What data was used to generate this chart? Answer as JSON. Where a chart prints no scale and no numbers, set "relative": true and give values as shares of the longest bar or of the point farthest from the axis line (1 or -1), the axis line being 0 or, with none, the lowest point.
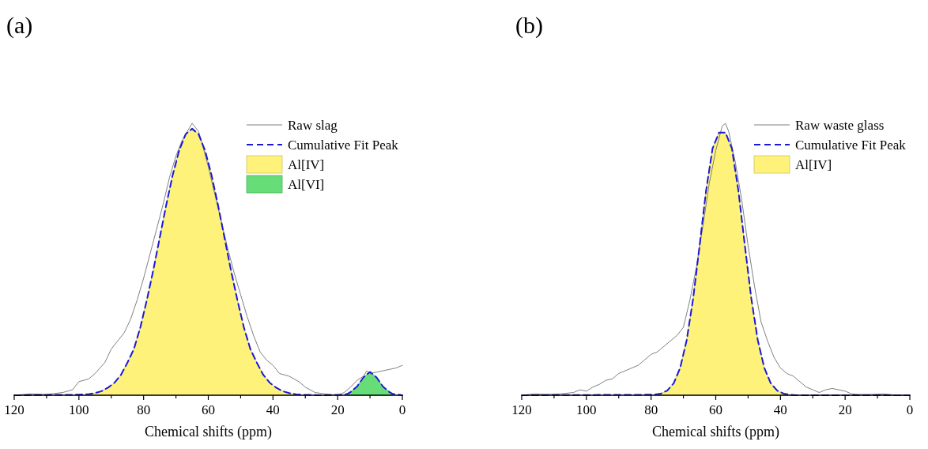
{
  "chart_data": [
    {
      "type": "line",
      "title": "(a)",
      "xlabel": "Chemical shifts (ppm)",
      "relative": true,
      "xlim": [
        120,
        0
      ],
      "xticks": [
        120,
        {
          "value": 110,
          "label": null
        },
        100,
        {
          "value": 90,
          "label": null
        },
        80,
        {
          "value": 70,
          "label": null
        },
        60,
        {
          "value": 50,
          "label": null
        },
        40,
        {
          "value": 30,
          "label": null
        },
        20,
        {
          "value": 10,
          "label": null
        },
        0
      ],
      "grid": false,
      "legend": "top right",
      "series": [
        {
          "name": "Raw slag",
          "color": "#808080",
          "x": [
            120,
            115,
            110,
            105,
            102,
            100,
            97,
            95,
            92,
            90,
            88,
            86,
            84,
            82,
            80,
            78,
            76,
            74,
            72,
            70,
            68,
            66,
            65,
            63,
            62,
            60,
            58,
            56,
            54,
            52,
            50,
            48,
            46,
            44,
            42,
            40,
            38,
            35,
            32,
            30,
            27,
            24,
            20,
            18,
            16,
            14,
            12,
            11,
            10,
            8,
            6,
            4,
            2,
            0
          ],
          "values": [
            0,
            0.005,
            0.003,
            0.01,
            0.02,
            0.05,
            0.06,
            0.08,
            0.12,
            0.17,
            0.2,
            0.23,
            0.28,
            0.35,
            0.43,
            0.52,
            0.61,
            0.7,
            0.8,
            0.88,
            0.94,
            0.98,
            1,
            0.97,
            0.93,
            0.84,
            0.74,
            0.64,
            0.54,
            0.45,
            0.37,
            0.29,
            0.22,
            0.16,
            0.13,
            0.11,
            0.08,
            0.07,
            0.05,
            0.03,
            0.01,
            0.005,
            0,
            0.01,
            0.03,
            0.055,
            0.07,
            0.09,
            0.08,
            0.085,
            0.09,
            0.095,
            0.1,
            0.11
          ]
        },
        {
          "name": "Cumulative Fit Peak",
          "line_style": "dashed",
          "color": "#1a1ad6",
          "x": [
            120,
            100,
            97,
            95,
            93,
            91,
            89,
            87,
            85,
            83,
            81,
            79,
            77,
            75,
            73,
            71,
            69,
            67,
            65,
            63,
            61,
            59,
            57,
            55,
            53,
            51,
            49,
            47,
            45,
            43,
            41,
            39,
            37,
            35,
            33,
            31,
            25,
            18,
            17,
            16,
            14,
            12,
            10,
            8,
            6,
            4,
            3,
            0
          ],
          "values": [
            0,
            0.002,
            0.004,
            0.008,
            0.015,
            0.028,
            0.046,
            0.075,
            0.12,
            0.17,
            0.25,
            0.35,
            0.46,
            0.58,
            0.7,
            0.81,
            0.9,
            0.96,
            0.98,
            0.96,
            0.9,
            0.81,
            0.7,
            0.58,
            0.46,
            0.35,
            0.25,
            0.17,
            0.12,
            0.075,
            0.046,
            0.028,
            0.015,
            0.008,
            0.004,
            0.002,
            0,
            0.002,
            0.005,
            0.012,
            0.032,
            0.066,
            0.086,
            0.066,
            0.032,
            0.012,
            0.005,
            0
          ]
        },
        {
          "name": "Al[IV]",
          "type": "area",
          "color": "#fff27a",
          "x": [
            97,
            95,
            93,
            91,
            89,
            87,
            85,
            83,
            81,
            79,
            77,
            75,
            73,
            71,
            69,
            67,
            65,
            63,
            61,
            59,
            57,
            55,
            53,
            51,
            49,
            47,
            45,
            43,
            41,
            39,
            37,
            35,
            33
          ],
          "values": [
            0.004,
            0.008,
            0.015,
            0.028,
            0.046,
            0.075,
            0.12,
            0.17,
            0.25,
            0.35,
            0.46,
            0.58,
            0.7,
            0.81,
            0.9,
            0.96,
            0.98,
            0.96,
            0.9,
            0.81,
            0.7,
            0.58,
            0.46,
            0.35,
            0.25,
            0.17,
            0.12,
            0.075,
            0.046,
            0.028,
            0.015,
            0.008,
            0.004
          ]
        },
        {
          "name": "Al[VI]",
          "type": "area",
          "color": "#66dd77",
          "x": [
            17,
            16,
            14,
            12,
            10,
            8,
            6,
            4,
            3
          ],
          "values": [
            0.005,
            0.012,
            0.032,
            0.066,
            0.086,
            0.066,
            0.032,
            0.012,
            0.005
          ]
        }
      ]
    },
    {
      "type": "line",
      "title": "(b)",
      "xlabel": "Chemical shifts (ppm)",
      "relative": true,
      "xlim": [
        120,
        0
      ],
      "xticks": [
        120,
        {
          "value": 110,
          "label": null
        },
        100,
        {
          "value": 90,
          "label": null
        },
        80,
        {
          "value": 70,
          "label": null
        },
        60,
        {
          "value": 50,
          "label": null
        },
        40,
        {
          "value": 30,
          "label": null
        },
        20,
        {
          "value": 10,
          "label": null
        },
        0
      ],
      "grid": false,
      "legend": "top right",
      "series": [
        {
          "name": "Raw waste glass",
          "color": "#808080",
          "x": [
            120,
            116,
            112,
            108,
            104,
            102,
            100,
            98,
            96,
            94,
            92,
            90,
            88,
            86,
            84,
            82,
            80,
            78,
            76,
            74,
            72,
            70,
            68,
            66,
            64,
            62,
            60,
            58,
            57,
            56,
            54,
            52,
            50,
            48,
            46,
            44,
            42,
            40,
            38,
            36,
            34,
            32,
            30,
            28,
            26,
            24,
            22,
            20,
            18,
            16,
            12,
            8,
            4,
            0
          ],
          "values": [
            0,
            0.005,
            0.003,
            0.005,
            0.01,
            0.02,
            0.015,
            0.03,
            0.04,
            0.055,
            0.06,
            0.08,
            0.09,
            0.1,
            0.11,
            0.13,
            0.15,
            0.16,
            0.18,
            0.2,
            0.22,
            0.25,
            0.35,
            0.47,
            0.62,
            0.78,
            0.9,
            0.99,
            1,
            0.97,
            0.86,
            0.72,
            0.55,
            0.4,
            0.27,
            0.2,
            0.14,
            0.1,
            0.08,
            0.07,
            0.05,
            0.03,
            0.02,
            0.01,
            0.02,
            0.025,
            0.02,
            0.015,
            0.005,
            0.003,
            0.003,
            0.005,
            0,
            0
          ]
        },
        {
          "name": "Cumulative Fit Peak",
          "line_style": "dashed",
          "color": "#1a1ad6",
          "x": [
            120,
            79,
            77,
            75,
            73,
            71,
            69,
            67,
            65,
            63,
            61,
            59,
            57,
            55,
            53,
            51,
            49,
            47,
            45,
            43,
            41,
            39,
            37,
            35,
            0
          ],
          "values": [
            0,
            0.002,
            0.006,
            0.017,
            0.044,
            0.101,
            0.202,
            0.355,
            0.55,
            0.752,
            0.907,
            0.966,
            0.966,
            0.907,
            0.752,
            0.55,
            0.355,
            0.202,
            0.101,
            0.044,
            0.017,
            0.006,
            0.002,
            0,
            0
          ]
        },
        {
          "name": "Al[IV]",
          "type": "area",
          "color": "#fff27a",
          "x": [
            79,
            77,
            75,
            73,
            71,
            69,
            67,
            65,
            63,
            61,
            59,
            57,
            55,
            53,
            51,
            49,
            47,
            45,
            43,
            41,
            39,
            37,
            35
          ],
          "values": [
            0.002,
            0.006,
            0.017,
            0.044,
            0.101,
            0.202,
            0.355,
            0.55,
            0.752,
            0.907,
            0.966,
            0.966,
            0.907,
            0.752,
            0.55,
            0.355,
            0.202,
            0.101,
            0.044,
            0.017,
            0.006,
            0.002,
            0
          ]
        }
      ]
    }
  ]
}
